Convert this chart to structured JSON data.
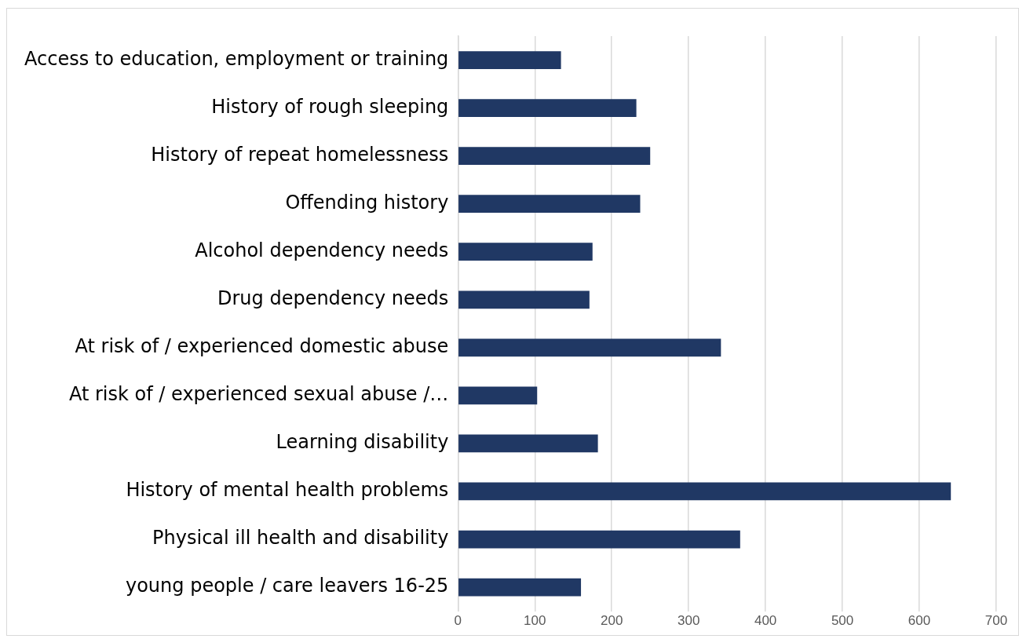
{
  "chart_data": {
    "type": "bar",
    "orientation": "horizontal",
    "categories": [
      "Access to education, employment or training",
      "History of rough sleeping",
      "History of repeat homelessness",
      "Offending history",
      "Alcohol dependency needs",
      "Drug dependency needs",
      "At risk of / experienced domestic abuse",
      "At risk of / experienced sexual abuse /…",
      "Learning disability",
      "History of mental health problems",
      "Physical ill health and disability",
      "young people / care leavers 16-25"
    ],
    "values": [
      134,
      232,
      250,
      237,
      175,
      171,
      342,
      103,
      182,
      641,
      367,
      160
    ],
    "color": "#203864",
    "xlim": [
      0,
      700
    ],
    "xticks": [
      0,
      100,
      200,
      300,
      400,
      500,
      600,
      700
    ],
    "grid": "x",
    "legend": false
  }
}
